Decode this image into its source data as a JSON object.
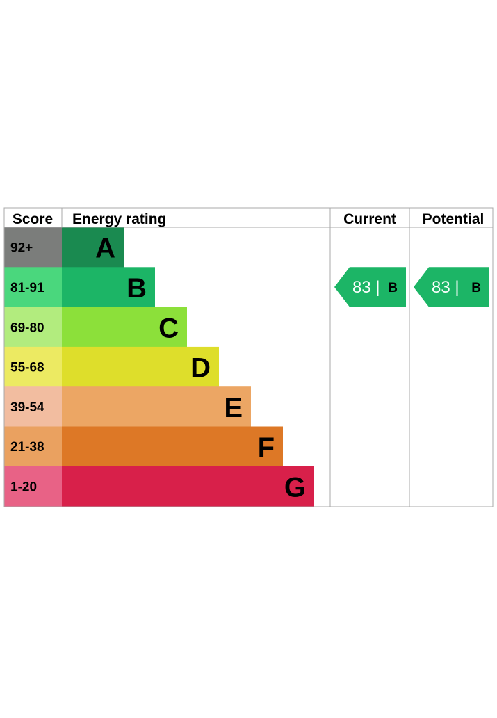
{
  "chart_data": {
    "type": "bar",
    "title": "",
    "headers": {
      "score": "Score",
      "rating": "Energy rating",
      "current": "Current",
      "potential": "Potential"
    },
    "bands": [
      {
        "letter": "A",
        "score_range": "92+",
        "color": "#1a8a50",
        "score_color": "#7b7d7b"
      },
      {
        "letter": "B",
        "score_range": "81-91",
        "color": "#1cb566",
        "score_color": "#4ad77d"
      },
      {
        "letter": "C",
        "score_range": "69-80",
        "color": "#8ce03a",
        "score_color": "#b2ec7e"
      },
      {
        "letter": "D",
        "score_range": "55-68",
        "color": "#dede2b",
        "score_color": "#ecea62"
      },
      {
        "letter": "E",
        "score_range": "39-54",
        "color": "#eca664",
        "score_color": "#f2bda0"
      },
      {
        "letter": "F",
        "score_range": "21-38",
        "color": "#dd7826",
        "score_color": "#eaa160"
      },
      {
        "letter": "G",
        "score_range": "1-20",
        "color": "#d8204a",
        "score_color": "#e86286"
      }
    ],
    "current": {
      "value": 83,
      "letter": "B",
      "label": "83 |",
      "color": "#1cb566"
    },
    "potential": {
      "value": 83,
      "letter": "B",
      "label": "83 |",
      "color": "#1cb566"
    }
  }
}
